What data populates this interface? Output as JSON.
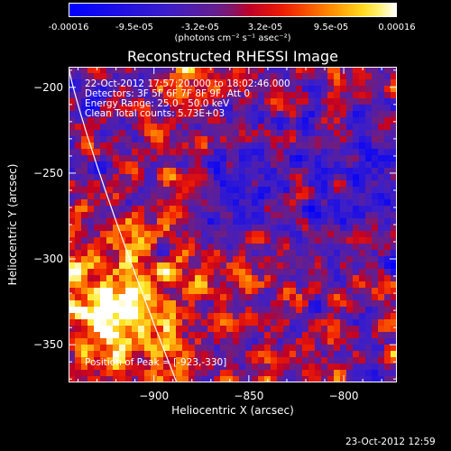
{
  "colorbar": {
    "ticks": [
      "-0.00016",
      "-9.5e-05",
      "-3.2e-05",
      "3.2e-05",
      "9.5e-05",
      "0.00016"
    ],
    "min": -0.00016,
    "max": 0.00016,
    "label": "(photons cm⁻² s⁻¹ asec⁻²)"
  },
  "chart_data": {
    "type": "heatmap",
    "title": "Reconstructed RHESSI Image",
    "xlabel": "Heliocentric X (arcsec)",
    "ylabel": "Heliocentric Y (arcsec)",
    "xlim": [
      -945,
      -772
    ],
    "ylim": [
      -372,
      -188
    ],
    "xticks": [
      -900,
      -850,
      -800
    ],
    "yticks": [
      -200,
      -250,
      -300,
      -350
    ],
    "peak_position": [
      -923,
      -330
    ],
    "annotations": [
      "22-Oct-2012 17:57:20.000 to 18:02:46.000",
      "Detectors: 3F 5F 6F 7F 8F 9F, Att 0",
      "Energy Range: 25.0 - 50.0 keV",
      "Clean     Total counts: 5.73E+03"
    ],
    "peak_label": "Position of Peak = [-923,-330]"
  },
  "timestamp": "23-Oct-2012 12:59",
  "colors": {
    "background": "#000000",
    "limb": "#ffffff"
  }
}
